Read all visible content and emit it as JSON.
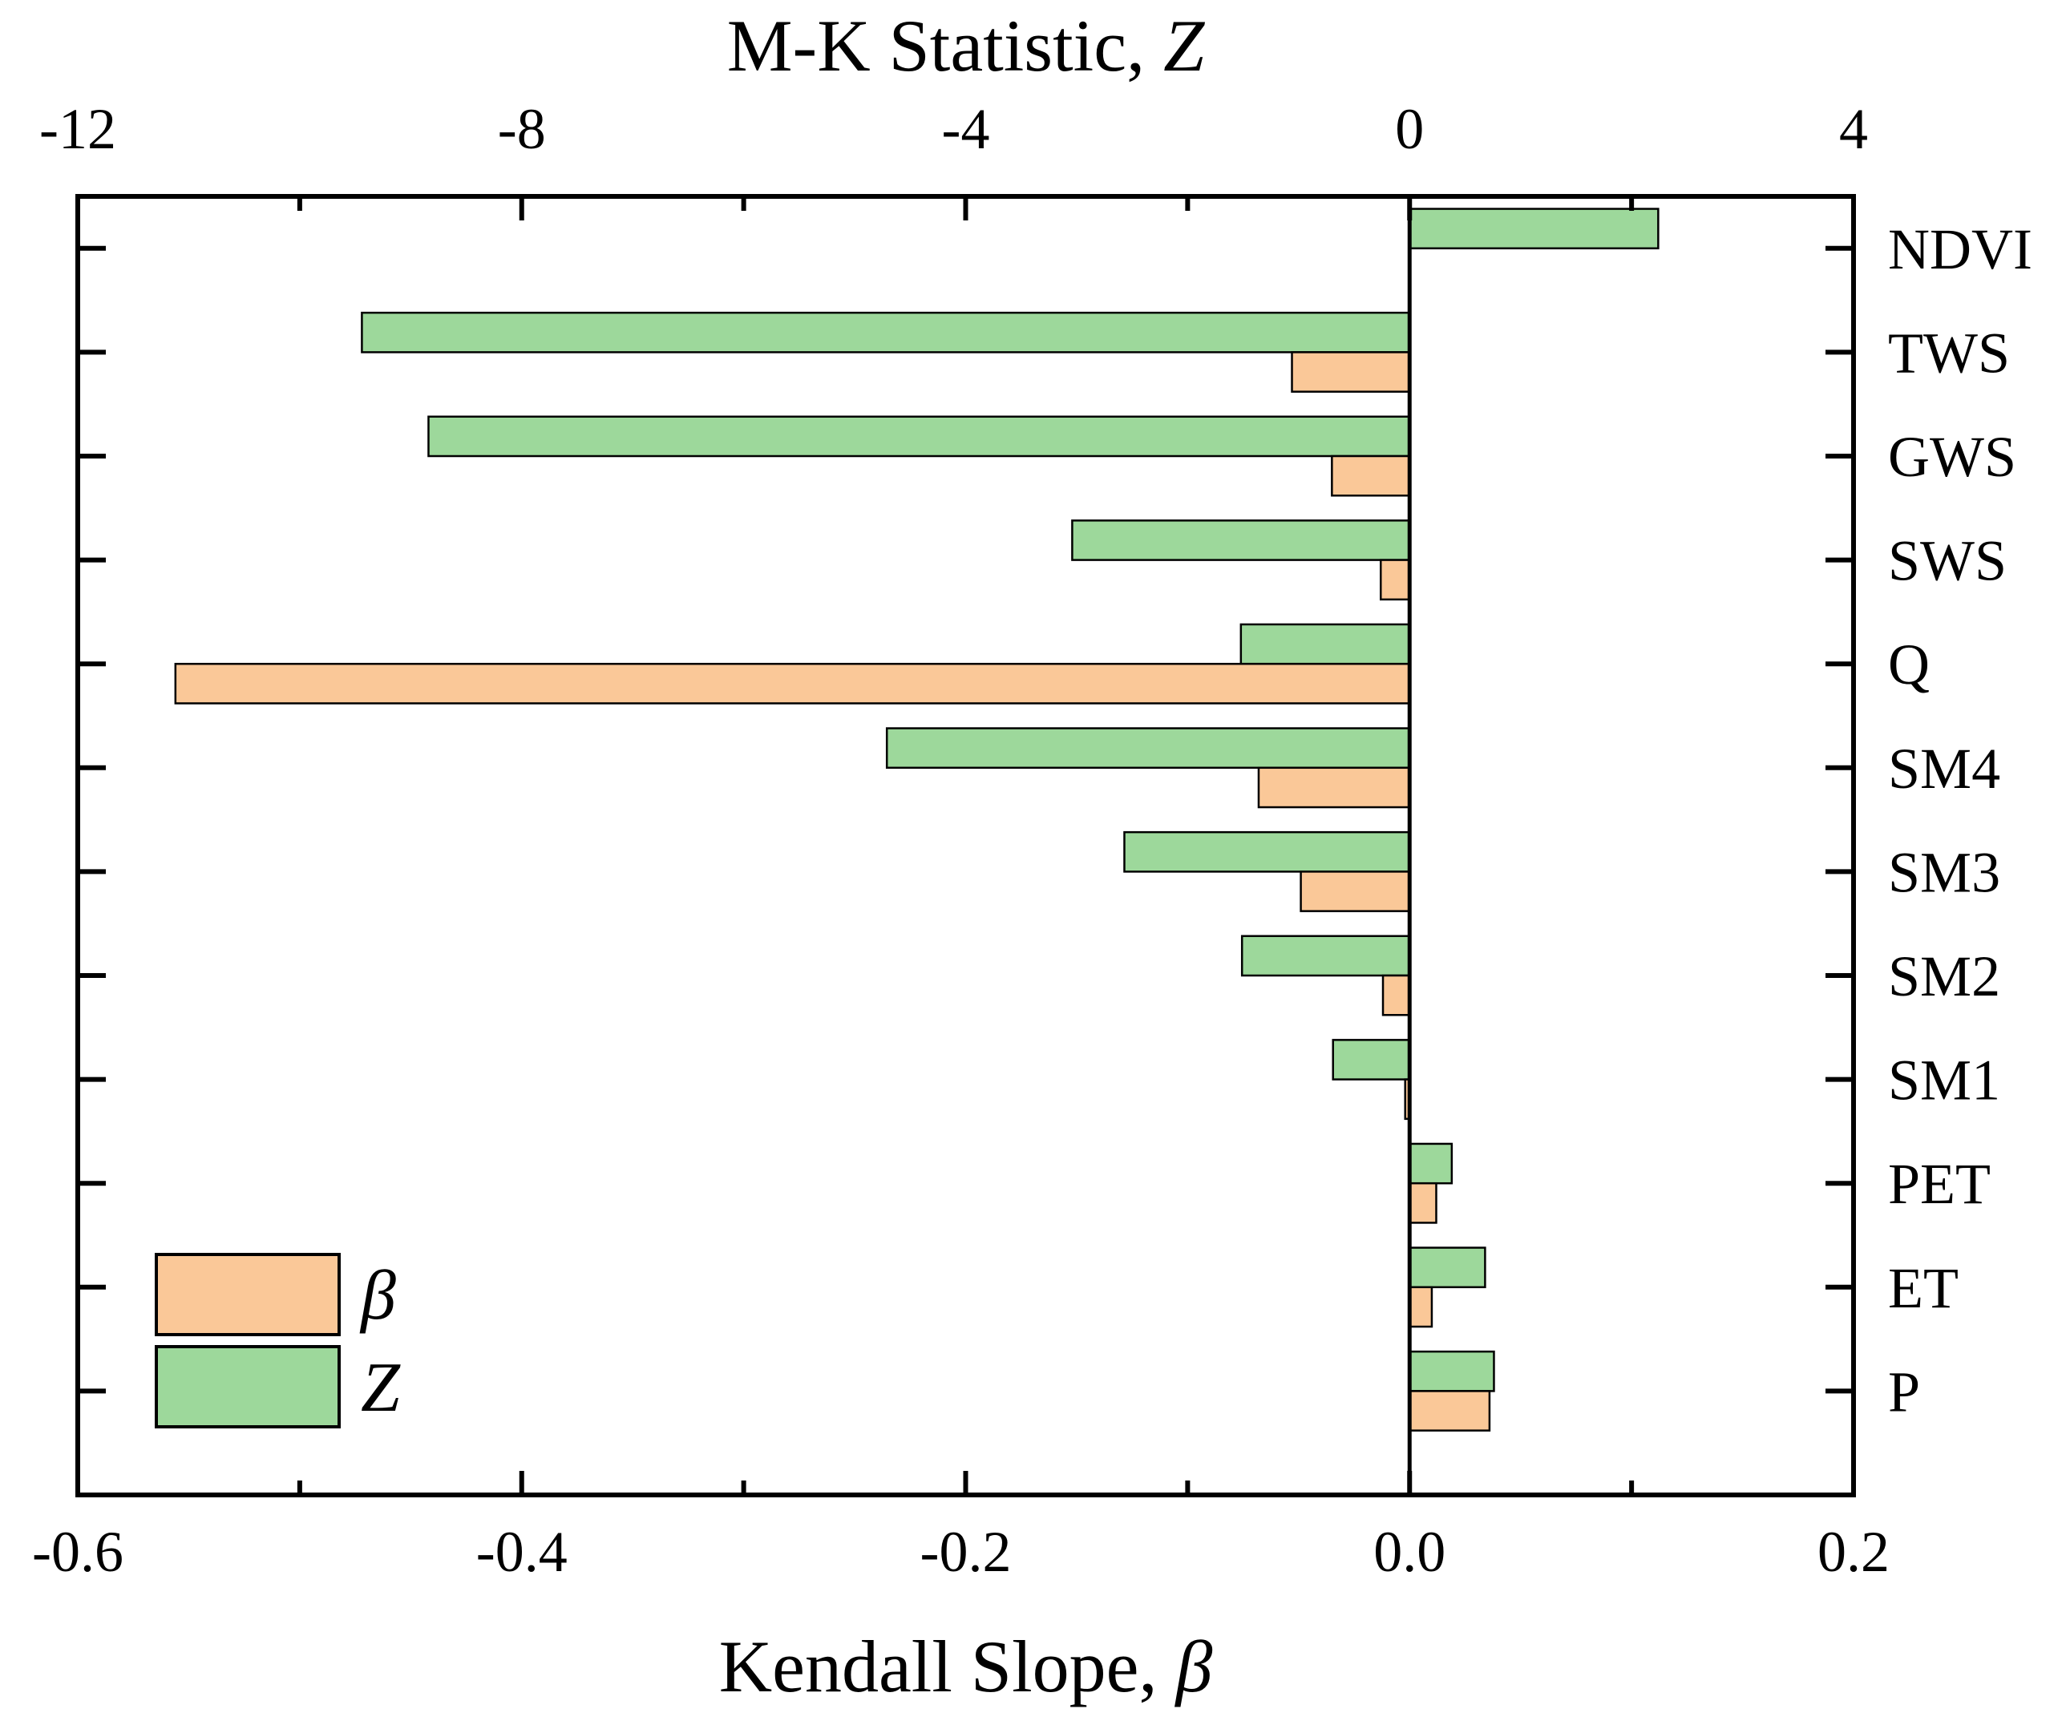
{
  "chart_data": {
    "type": "bar",
    "orientation": "horizontal",
    "categories": [
      "NDVI",
      "TWS",
      "GWS",
      "SWS",
      "Q",
      "SM4",
      "SM3",
      "SM2",
      "SM1",
      "PET",
      "ET",
      "P"
    ],
    "series": [
      {
        "name": "β",
        "axis": "bottom",
        "color": "#FAC898",
        "values": [
          0.0,
          -0.053,
          -0.035,
          -0.013,
          -0.556,
          -0.068,
          -0.049,
          -0.012,
          -0.002,
          0.012,
          0.01,
          0.036
        ]
      },
      {
        "name": "Z",
        "axis": "top",
        "color": "#9DD89B",
        "values": [
          2.24,
          -9.44,
          -8.84,
          -3.04,
          -1.52,
          -4.71,
          -2.57,
          -1.51,
          -0.69,
          0.38,
          0.68,
          0.76
        ]
      }
    ],
    "bottom_axis": {
      "label_text": "Kendall Slope, ",
      "label_symbol": "β",
      "range": [
        -0.6,
        0.2
      ],
      "ticks": [
        -0.6,
        -0.4,
        -0.2,
        0.0,
        0.2
      ],
      "tick_labels": [
        "-0.6",
        "-0.4",
        "-0.2",
        "0.0",
        "0.2"
      ]
    },
    "top_axis": {
      "label_text": "M-K Statistic, ",
      "label_symbol": "Z",
      "range": [
        -12,
        4
      ],
      "ticks": [
        -12,
        -8,
        -4,
        0,
        4
      ],
      "tick_labels": [
        "-12",
        "-8",
        "-4",
        "0",
        "4"
      ]
    },
    "legend": {
      "position": "bottom-left",
      "entries": [
        {
          "label": "β",
          "color": "#FAC898"
        },
        {
          "label": "Z",
          "color": "#9DD89B"
        }
      ]
    },
    "grid": false
  }
}
